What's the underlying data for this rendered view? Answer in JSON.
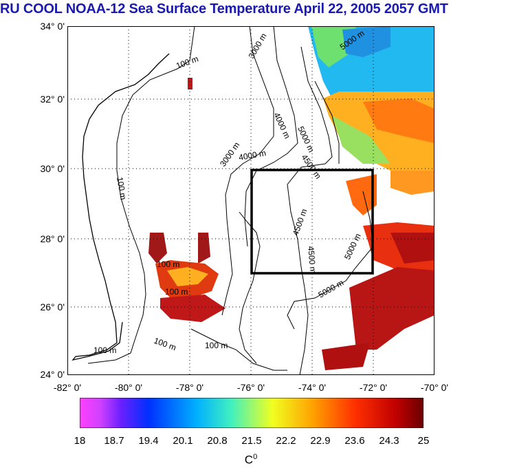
{
  "title": "RU COOL  NOAA-12 Sea Surface Temperature April 22, 2005 2057 GMT",
  "lat_ticks": [
    "34° 0'",
    "32° 0'",
    "30° 0'",
    "28° 0'",
    "26° 0'",
    "24° 0'"
  ],
  "lon_ticks": [
    "-82° 0'",
    "-80° 0'",
    "-78° 0'",
    "-76° 0'",
    "-74° 0'",
    "-72° 0'",
    "-70° 0'"
  ],
  "colorbar": {
    "labels": [
      "18",
      "18.7",
      "19.4",
      "20.1",
      "20.8",
      "21.5",
      "22.2",
      "22.9",
      "23.6",
      "24.3",
      "25"
    ],
    "unit": "C",
    "unit_sup": "0",
    "min": 18,
    "max": 25
  },
  "contour_labels": [
    "100 m",
    "3000 m",
    "4000 m",
    "5000 m",
    "4500 m"
  ],
  "study_box": {
    "lon": [
      -76,
      -72
    ],
    "lat": [
      27,
      30
    ]
  },
  "extent": {
    "lon": [
      -82,
      -70
    ],
    "lat": [
      24,
      34
    ]
  },
  "colors": {
    "title": "#1a1ab0",
    "box": "#000000"
  }
}
